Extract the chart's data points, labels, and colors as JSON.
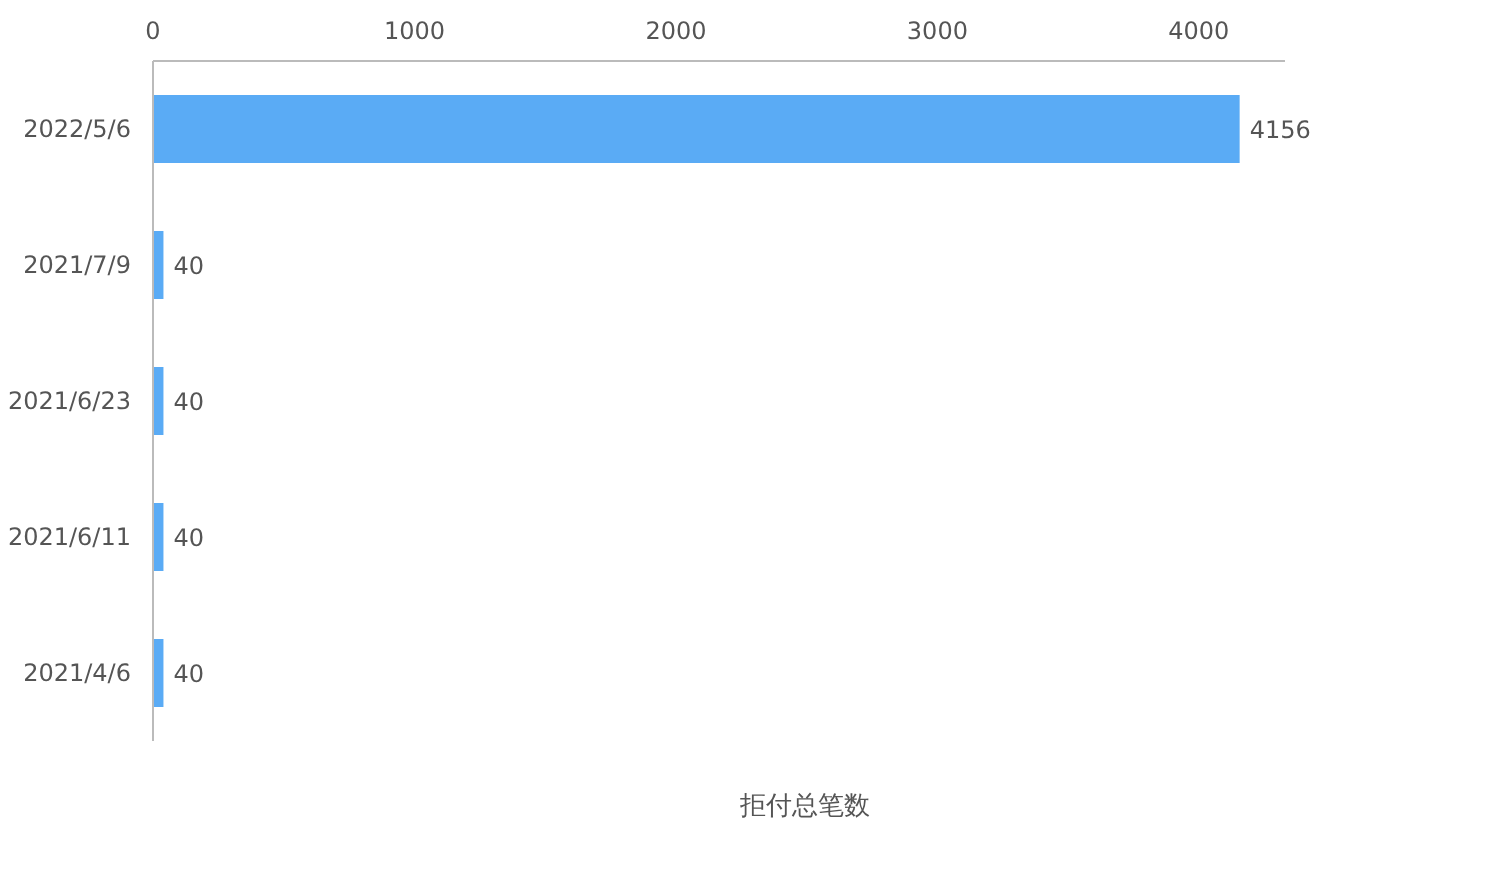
{
  "chart_data": {
    "type": "bar",
    "orientation": "horizontal",
    "categories": [
      "2022/5/6",
      "2021/7/9",
      "2021/6/23",
      "2021/6/11",
      "2021/4/6"
    ],
    "series": [
      {
        "name": "拒付总笔数",
        "color": "#5aabf5",
        "values": [
          4156,
          40,
          40,
          40,
          40
        ]
      }
    ],
    "xlim": [
      0,
      4330
    ],
    "xticks": [
      0,
      1000,
      2000,
      3000,
      4000
    ],
    "grid": false,
    "legend": "bottom",
    "data_labels": true
  }
}
